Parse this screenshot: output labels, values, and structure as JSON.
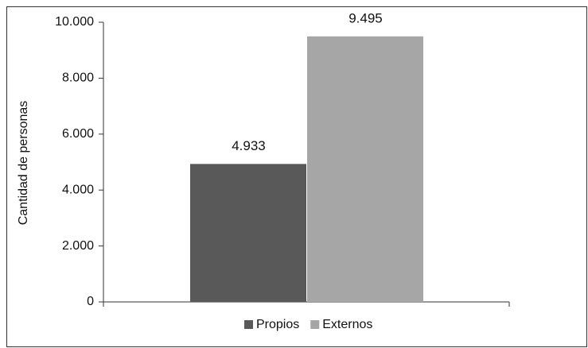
{
  "chart_data": {
    "type": "bar",
    "y_label": "Cantidad de personas",
    "categories": [
      null
    ],
    "series": [
      {
        "name": "Propios",
        "color": "#595959",
        "values": [
          4933
        ],
        "value_labels": [
          "4.933"
        ]
      },
      {
        "name": "Externos",
        "color": "#a6a6a6",
        "values": [
          9495
        ],
        "value_labels": [
          "9.495"
        ]
      }
    ],
    "ylim": [
      0,
      10000
    ],
    "yticks": [
      0,
      {
        "value": 2000,
        "label": "2.000"
      },
      {
        "value": 4000,
        "label": "4.000"
      },
      {
        "value": 6000,
        "label": "6.000"
      },
      {
        "value": 8000,
        "label": "8.000"
      },
      {
        "value": 10000,
        "label": "10.000"
      }
    ],
    "grid": false
  }
}
